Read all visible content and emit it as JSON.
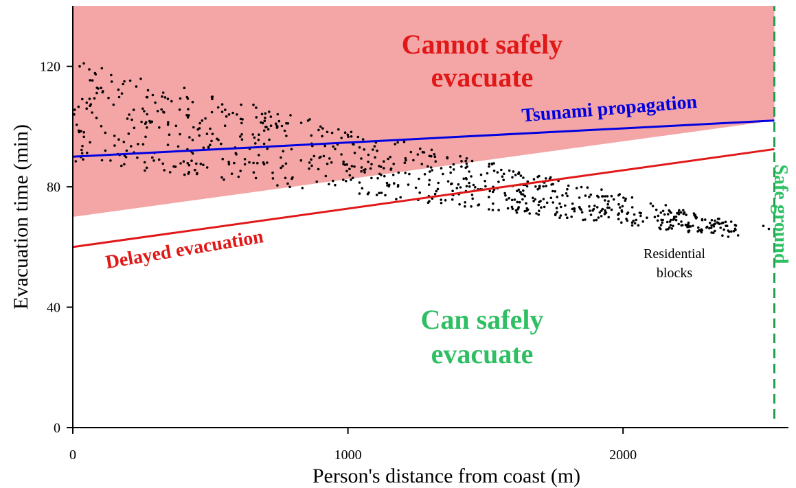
{
  "chart_data": {
    "type": "scatter",
    "title": "",
    "xlabel": "Person's distance from coast (m)",
    "ylabel": "Evacuation time (min)",
    "xlim": [
      0,
      2600
    ],
    "ylim": [
      0,
      140
    ],
    "x_ticks": [
      "0",
      "1000",
      "2000"
    ],
    "y_ticks": [
      "0",
      "40",
      "80",
      "120"
    ],
    "grid": false,
    "regions": [
      {
        "name": "Cannot safely evacuate",
        "color": "#f4a6a6",
        "boundary": "from Delayed evacuation line + 10 min up to top of chart"
      }
    ],
    "lines": [
      {
        "name": "Tsunami propagation",
        "color": "#0000e0",
        "x": [
          0,
          2550
        ],
        "y": [
          90,
          102
        ]
      },
      {
        "name": "Delayed evacuation",
        "color": "#e01818",
        "x": [
          0,
          2550
        ],
        "y": [
          60,
          92.5
        ]
      },
      {
        "name": "Safe ground",
        "color": "#1f9e4a",
        "style": "dashed",
        "x": [
          2550,
          2550
        ],
        "y": [
          0,
          140
        ]
      }
    ],
    "shaded_region": {
      "x": [
        0,
        2550,
        2550,
        0
      ],
      "y": [
        70,
        102,
        140,
        140
      ]
    },
    "annotations": {
      "cannot_l1": "Cannot safely",
      "cannot_l2": "evacuate",
      "can_l1": "Can safely",
      "can_l2": "evacuate",
      "tsunami": "Tsunami propagation",
      "delayed": "Delayed evacuation",
      "safe": "Safe ground",
      "residential_l1": "Residential",
      "residential_l2": "blocks"
    },
    "colors": {
      "region": "#f4a6a6",
      "cannot": "#e01818",
      "can": "#2fbf63",
      "tsunami": "#0000e0",
      "delayed": "#e01818",
      "safe": "#1f9e4a",
      "points": "#000000"
    },
    "series": [
      {
        "name": "Residential blocks",
        "band": {
          "x_range": [
            0,
            2420
          ],
          "y_top_at_start": 122,
          "y_top_at_end": 68,
          "y_bottom_at_start": 88,
          "y_bottom_at_end": 63,
          "count": 800
        },
        "extra_points": [
          {
            "x": 2530,
            "y": 66
          },
          {
            "x": 2510,
            "y": 67
          },
          {
            "x": 40,
            "y": 121
          },
          {
            "x": 25,
            "y": 120
          },
          {
            "x": 60,
            "y": 119
          }
        ]
      }
    ]
  }
}
